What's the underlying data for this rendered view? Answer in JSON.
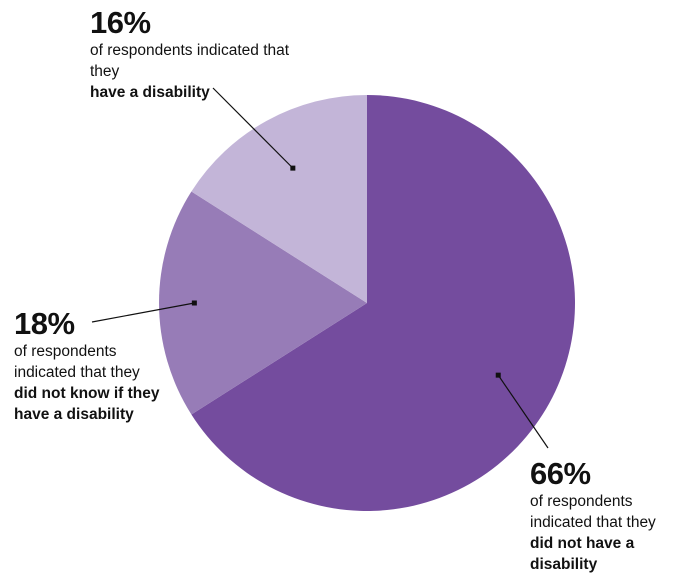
{
  "chart_data": {
    "type": "pie",
    "slices": [
      {
        "value": 66,
        "label": "66%",
        "text": "of respondents indicated that they",
        "bold": "did not have a disability",
        "color": "#744c9e"
      },
      {
        "value": 18,
        "label": "18%",
        "text": "of respondents indicated that they",
        "bold": "did not know if they have a disability",
        "color": "#977cb7"
      },
      {
        "value": 16,
        "label": "16%",
        "text": "of respondents indicated that they",
        "bold": "have a disability",
        "color": "#c3b5d8"
      }
    ]
  }
}
